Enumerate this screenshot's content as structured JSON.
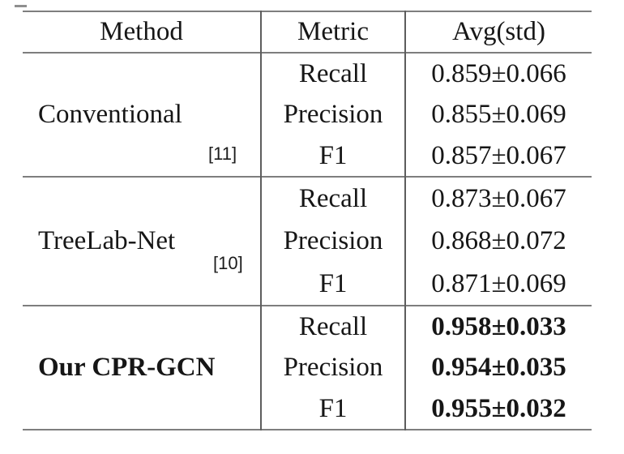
{
  "header": {
    "method": "Method",
    "metric": "Metric",
    "avg": "Avg(std)"
  },
  "groups": [
    {
      "method": "Conventional",
      "citation": "[11]",
      "rows": [
        {
          "metric": "Recall",
          "value": "0.859±0.066"
        },
        {
          "metric": "Precision",
          "value": "0.855±0.069"
        },
        {
          "metric": "F1",
          "value": "0.857±0.067"
        }
      ]
    },
    {
      "method": "TreeLab-Net",
      "citation": "[10]",
      "rows": [
        {
          "metric": "Recall",
          "value": "0.873±0.067"
        },
        {
          "metric": "Precision",
          "value": "0.868±0.072"
        },
        {
          "metric": "F1",
          "value": "0.871±0.069"
        }
      ]
    },
    {
      "method": "Our CPR-GCN",
      "citation": "",
      "rows": [
        {
          "metric": "Recall",
          "value": "0.958±0.033"
        },
        {
          "metric": "Precision",
          "value": "0.954±0.035"
        },
        {
          "metric": "F1",
          "value": "0.955±0.032"
        }
      ]
    }
  ],
  "colors": {
    "background": "#ffffff",
    "text": "#161616",
    "rule_horizontal": "#7e7e7e",
    "rule_vertical": "#5d5d5d"
  },
  "chart_data": {
    "type": "table",
    "columns": [
      "Method",
      "Metric",
      "Avg(std)"
    ],
    "rows": [
      [
        "Conventional [11]",
        "Recall",
        "0.859±0.066"
      ],
      [
        "Conventional [11]",
        "Precision",
        "0.855±0.069"
      ],
      [
        "Conventional [11]",
        "F1",
        "0.857±0.067"
      ],
      [
        "TreeLab-Net [10]",
        "Recall",
        "0.873±0.067"
      ],
      [
        "TreeLab-Net [10]",
        "Precision",
        "0.868±0.072"
      ],
      [
        "TreeLab-Net [10]",
        "F1",
        "0.871±0.069"
      ],
      [
        "Our CPR-GCN",
        "Recall",
        "0.958±0.033"
      ],
      [
        "Our CPR-GCN",
        "Precision",
        "0.954±0.035"
      ],
      [
        "Our CPR-GCN",
        "F1",
        "0.955±0.032"
      ]
    ]
  }
}
